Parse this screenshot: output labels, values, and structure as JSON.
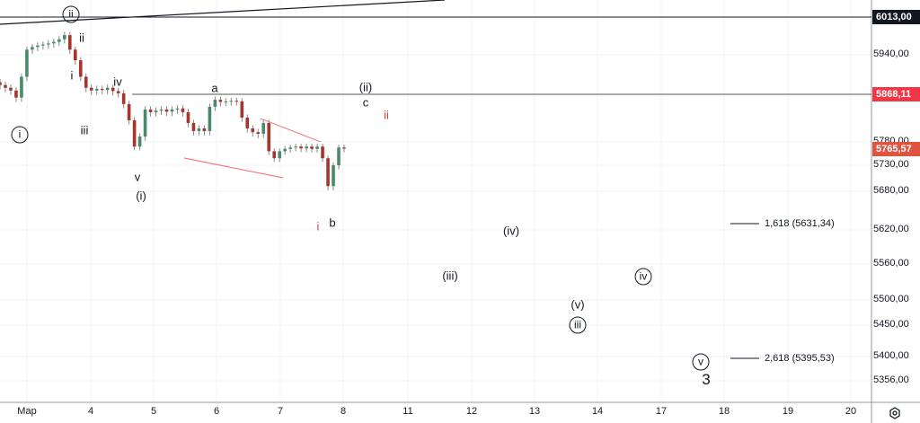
{
  "chart_data": {
    "type": "candlestick",
    "price_axis": {
      "ticks": [
        5940,
        5780,
        5730,
        5680,
        5620,
        5560,
        5500,
        5450,
        5400,
        5356
      ],
      "tick_labels": [
        "5940,00",
        "5780,00",
        "5730,00",
        "5680,00",
        "5620,00",
        "5560,00",
        "5500,00",
        "5450,00",
        "5400,00",
        "5356,00"
      ]
    },
    "date_axis": {
      "tick_labels": [
        "Мар",
        "4",
        "5",
        "6",
        "7",
        "8",
        "11",
        "12",
        "13",
        "14",
        "17",
        "18",
        "19",
        "20"
      ]
    },
    "closes": [
      5885,
      5880,
      5875,
      5862,
      5900,
      5950,
      5955,
      5958,
      5960,
      5962,
      5965,
      5970,
      5978,
      5950,
      5930,
      5900,
      5880,
      5875,
      5878,
      5876,
      5880,
      5874,
      5870,
      5850,
      5820,
      5770,
      5790,
      5840,
      5835,
      5838,
      5840,
      5836,
      5840,
      5842,
      5835,
      5815,
      5800,
      5805,
      5800,
      5845,
      5858,
      5854,
      5855,
      5856,
      5855,
      5825,
      5805,
      5798,
      5795,
      5815,
      5760,
      5745,
      5760,
      5765,
      5768,
      5770,
      5766,
      5770,
      5765,
      5770,
      5745,
      5690,
      5730,
      5768,
      5765.57
    ],
    "price_badges": [
      {
        "value": "6013,00",
        "color": "#131722"
      },
      {
        "value": "5868,11",
        "color": "#f23645"
      },
      {
        "value": "5765,57",
        "color": "#e0533f"
      }
    ],
    "up_color": "#4a8a6b",
    "down_color": "#a8342c",
    "wave_labels": [
      "ii",
      "ii",
      "i",
      "iv",
      "iii",
      "i",
      "v",
      "(i)",
      "a",
      "(ii)",
      "c",
      "ii",
      "i",
      "b",
      "(iv)",
      "(iii)",
      "iv",
      "(v)",
      "iii",
      "v",
      "3"
    ],
    "fib_levels": [
      "1,618 (5631,34)",
      "2,618 (5395,53)"
    ],
    "grid": true
  }
}
